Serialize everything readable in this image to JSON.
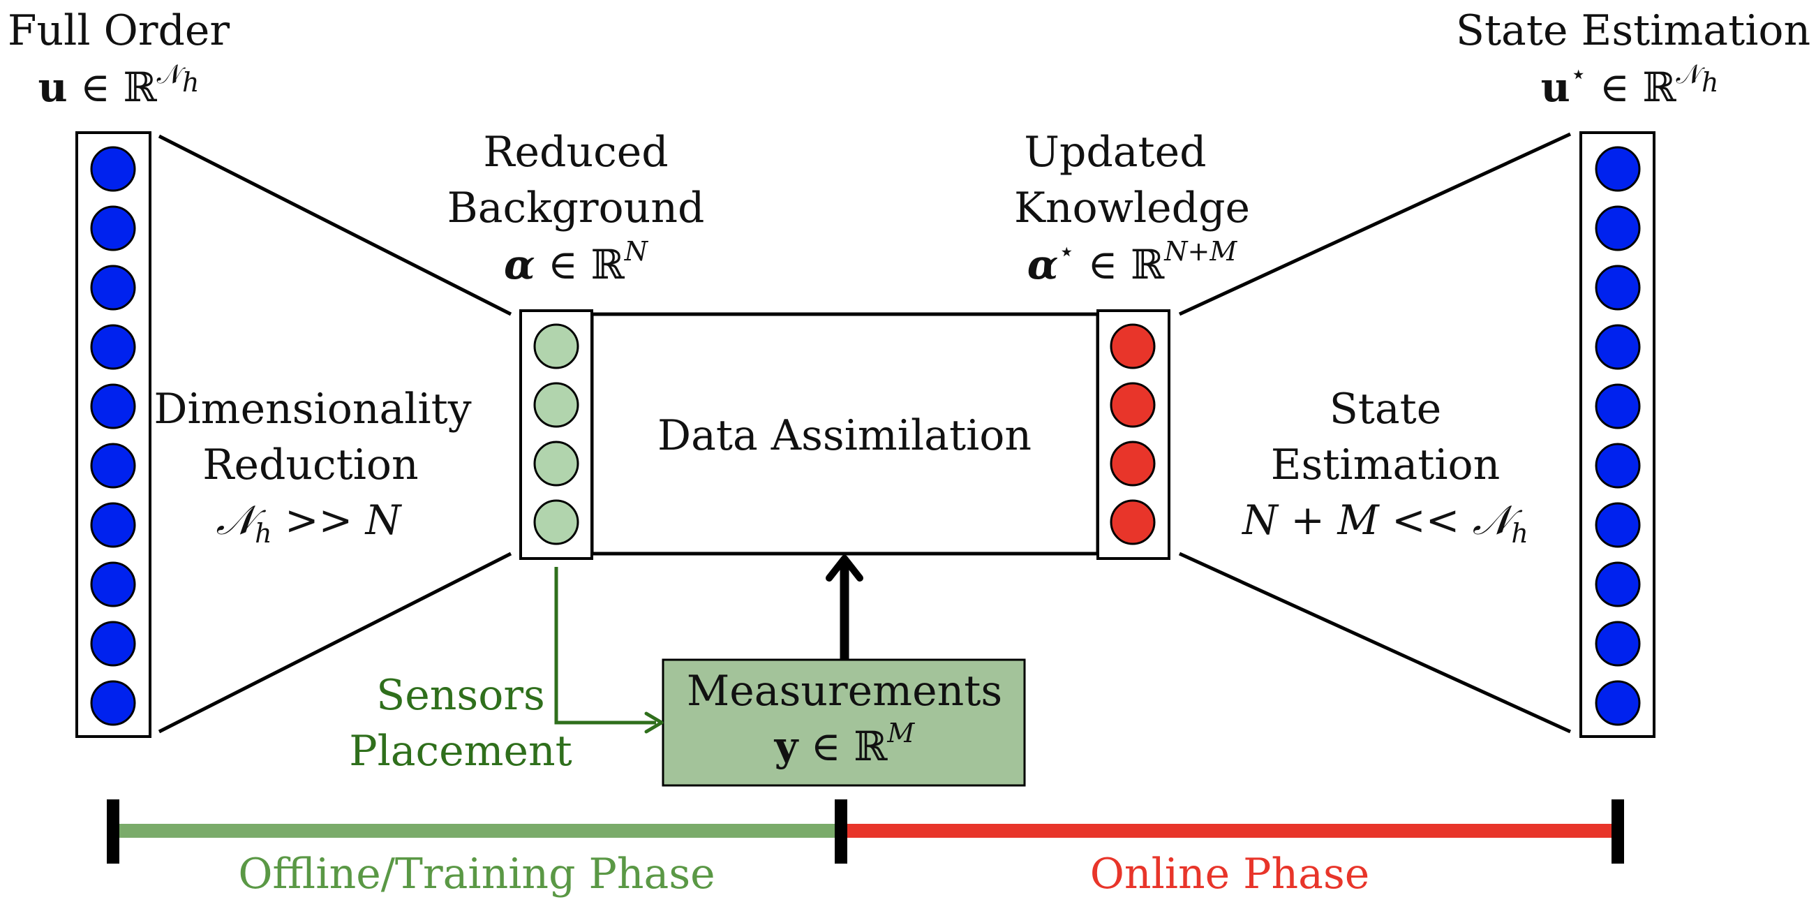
{
  "full_order": {
    "title": "Full Order",
    "math_bold": "u",
    "math_rest": " ∈ ℝ",
    "math_sup": "𝒩",
    "math_sup_sub": "h"
  },
  "state_estimation_output": {
    "title": "State Estimation",
    "math_bold": "u",
    "math_star": "⋆",
    "math_rest": " ∈ ℝ",
    "math_sup": "𝒩",
    "math_sup_sub": "h"
  },
  "reduced_background": {
    "line1": "Reduced",
    "line2": "Background",
    "math_bold": "α",
    "math_rest": "  ∈  ℝ",
    "math_sup": "N"
  },
  "updated_knowledge": {
    "line1": "Updated",
    "line2": "Knowledge",
    "math_bold": "α",
    "math_star": "⋆",
    "math_rest": "  ∈  ℝ",
    "math_sup": "N+M"
  },
  "dimensionality_reduction": {
    "line1": "Dimensionality",
    "line2": "Reduction",
    "math_a": "𝒩",
    "math_a_sub": "h",
    "math_b": " >> N"
  },
  "data_assimilation": {
    "label": "Data Assimilation"
  },
  "state_estimation_block": {
    "line1": "State",
    "line2": "Estimation",
    "math_a": "N + M << 𝒩",
    "math_a_sub": "h"
  },
  "measurements": {
    "line1": "Measurements",
    "math_bold": "y",
    "math_rest": "  ∈  ℝ",
    "math_sup": "M"
  },
  "sensors_placement": {
    "line1": "Sensors",
    "line2": "Placement"
  },
  "phases": {
    "offline": "Offline/Training Phase",
    "online": "Online Phase"
  },
  "colors": {
    "blue_node": "#0022ee",
    "green_node": "#b1d4ad",
    "red_node": "#e8352a",
    "measurement_box": "#a3c39a",
    "sensor_arrow": "#2f6f1c",
    "offline_bar": "#7aab6a",
    "online_bar": "#e8352a"
  }
}
